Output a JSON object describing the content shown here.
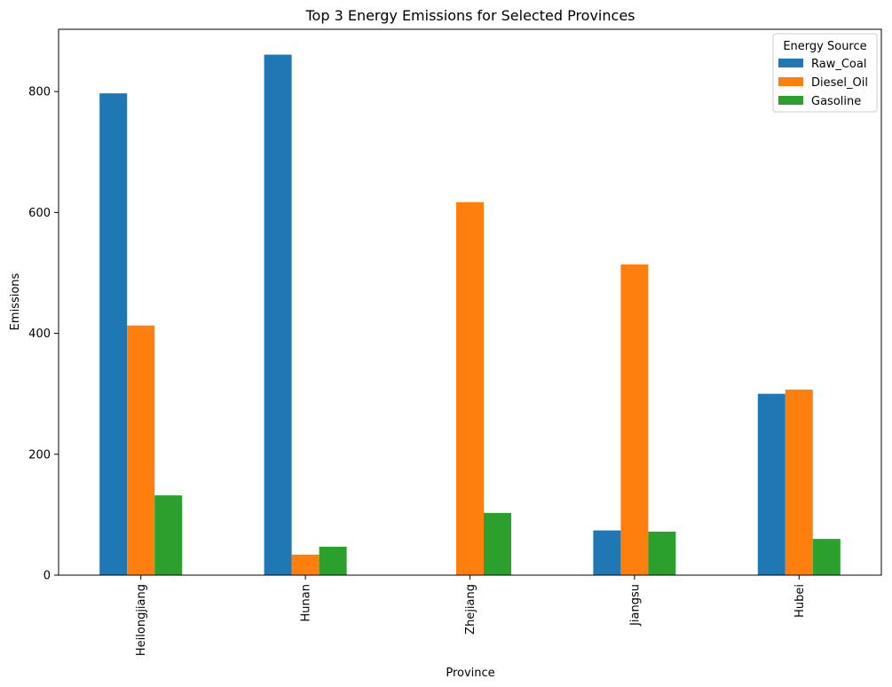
{
  "chart_data": {
    "type": "bar",
    "title": "Top 3 Energy Emissions for Selected Provinces",
    "xlabel": "Province",
    "ylabel": "Emissions",
    "categories": [
      "Heilongjiang",
      "Hunan",
      "Zhejiang",
      "Jiangsu",
      "Hubei"
    ],
    "series": [
      {
        "name": "Raw_Coal",
        "color": "#1f77b4",
        "values": [
          797,
          861,
          0,
          74,
          300
        ]
      },
      {
        "name": "Diesel_Oil",
        "color": "#ff7f0e",
        "values": [
          413,
          34,
          617,
          514,
          307
        ]
      },
      {
        "name": "Gasoline",
        "color": "#2ca02c",
        "values": [
          132,
          47,
          103,
          72,
          60
        ]
      }
    ],
    "ylim": [
      0,
      903
    ],
    "yticks": [
      0,
      200,
      400,
      600,
      800
    ],
    "grid": false,
    "legend": {
      "title": "Energy Source",
      "placement": "top-right"
    }
  }
}
